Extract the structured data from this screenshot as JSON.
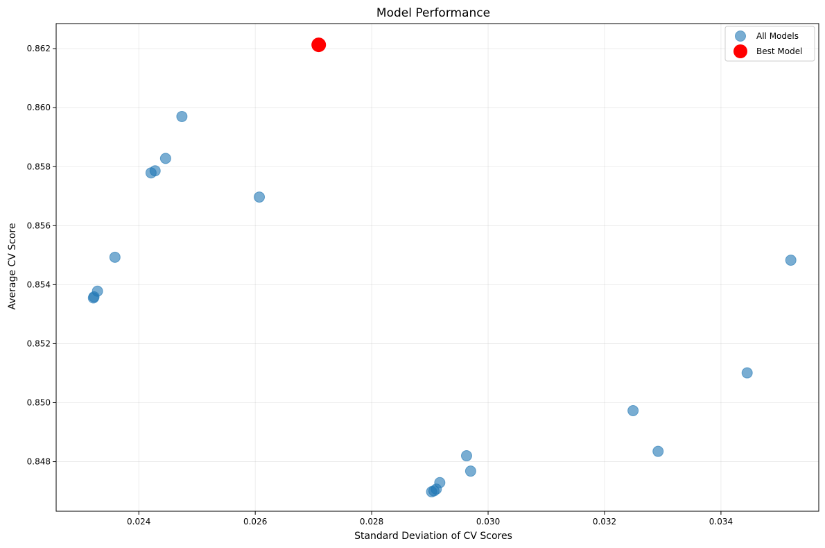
{
  "chart_data": {
    "type": "scatter",
    "title": "Model Performance",
    "xlabel": "Standard Deviation of CV Scores",
    "ylabel": "Average CV Score",
    "xlim": [
      0.02258,
      0.03568
    ],
    "ylim": [
      0.84632,
      0.86285
    ],
    "xticks": [
      0.024,
      0.026,
      0.028,
      0.03,
      0.032,
      0.034
    ],
    "xtick_labels": [
      "0.024",
      "0.026",
      "0.028",
      "0.030",
      "0.032",
      "0.034"
    ],
    "yticks": [
      0.848,
      0.85,
      0.852,
      0.854,
      0.856,
      0.858,
      0.86,
      0.862
    ],
    "ytick_labels": [
      "0.848",
      "0.850",
      "0.852",
      "0.854",
      "0.856",
      "0.858",
      "0.860",
      "0.862"
    ],
    "grid": true,
    "legend_position": "top-right",
    "series": [
      {
        "name": "All Models",
        "color": "#1f77b4",
        "opacity": 0.6,
        "points": [
          [
            0.02322,
            0.85355
          ],
          [
            0.02323,
            0.85359
          ],
          [
            0.02329,
            0.85378
          ],
          [
            0.02359,
            0.85493
          ],
          [
            0.02421,
            0.85779
          ],
          [
            0.02428,
            0.85786
          ],
          [
            0.02446,
            0.85828
          ],
          [
            0.02474,
            0.8597
          ],
          [
            0.02607,
            0.85697
          ],
          [
            0.02903,
            0.84698
          ],
          [
            0.02907,
            0.84701
          ],
          [
            0.02911,
            0.84707
          ],
          [
            0.02917,
            0.84729
          ],
          [
            0.02963,
            0.8482
          ],
          [
            0.0297,
            0.84768
          ],
          [
            0.03249,
            0.84973
          ],
          [
            0.03292,
            0.84835
          ],
          [
            0.03445,
            0.85101
          ],
          [
            0.0352,
            0.85483
          ],
          [
            0.02709,
            0.86213
          ]
        ]
      },
      {
        "name": "Best Model",
        "color": "#ff0000",
        "opacity": 1,
        "points": [
          [
            0.02709,
            0.86213
          ]
        ]
      }
    ]
  }
}
